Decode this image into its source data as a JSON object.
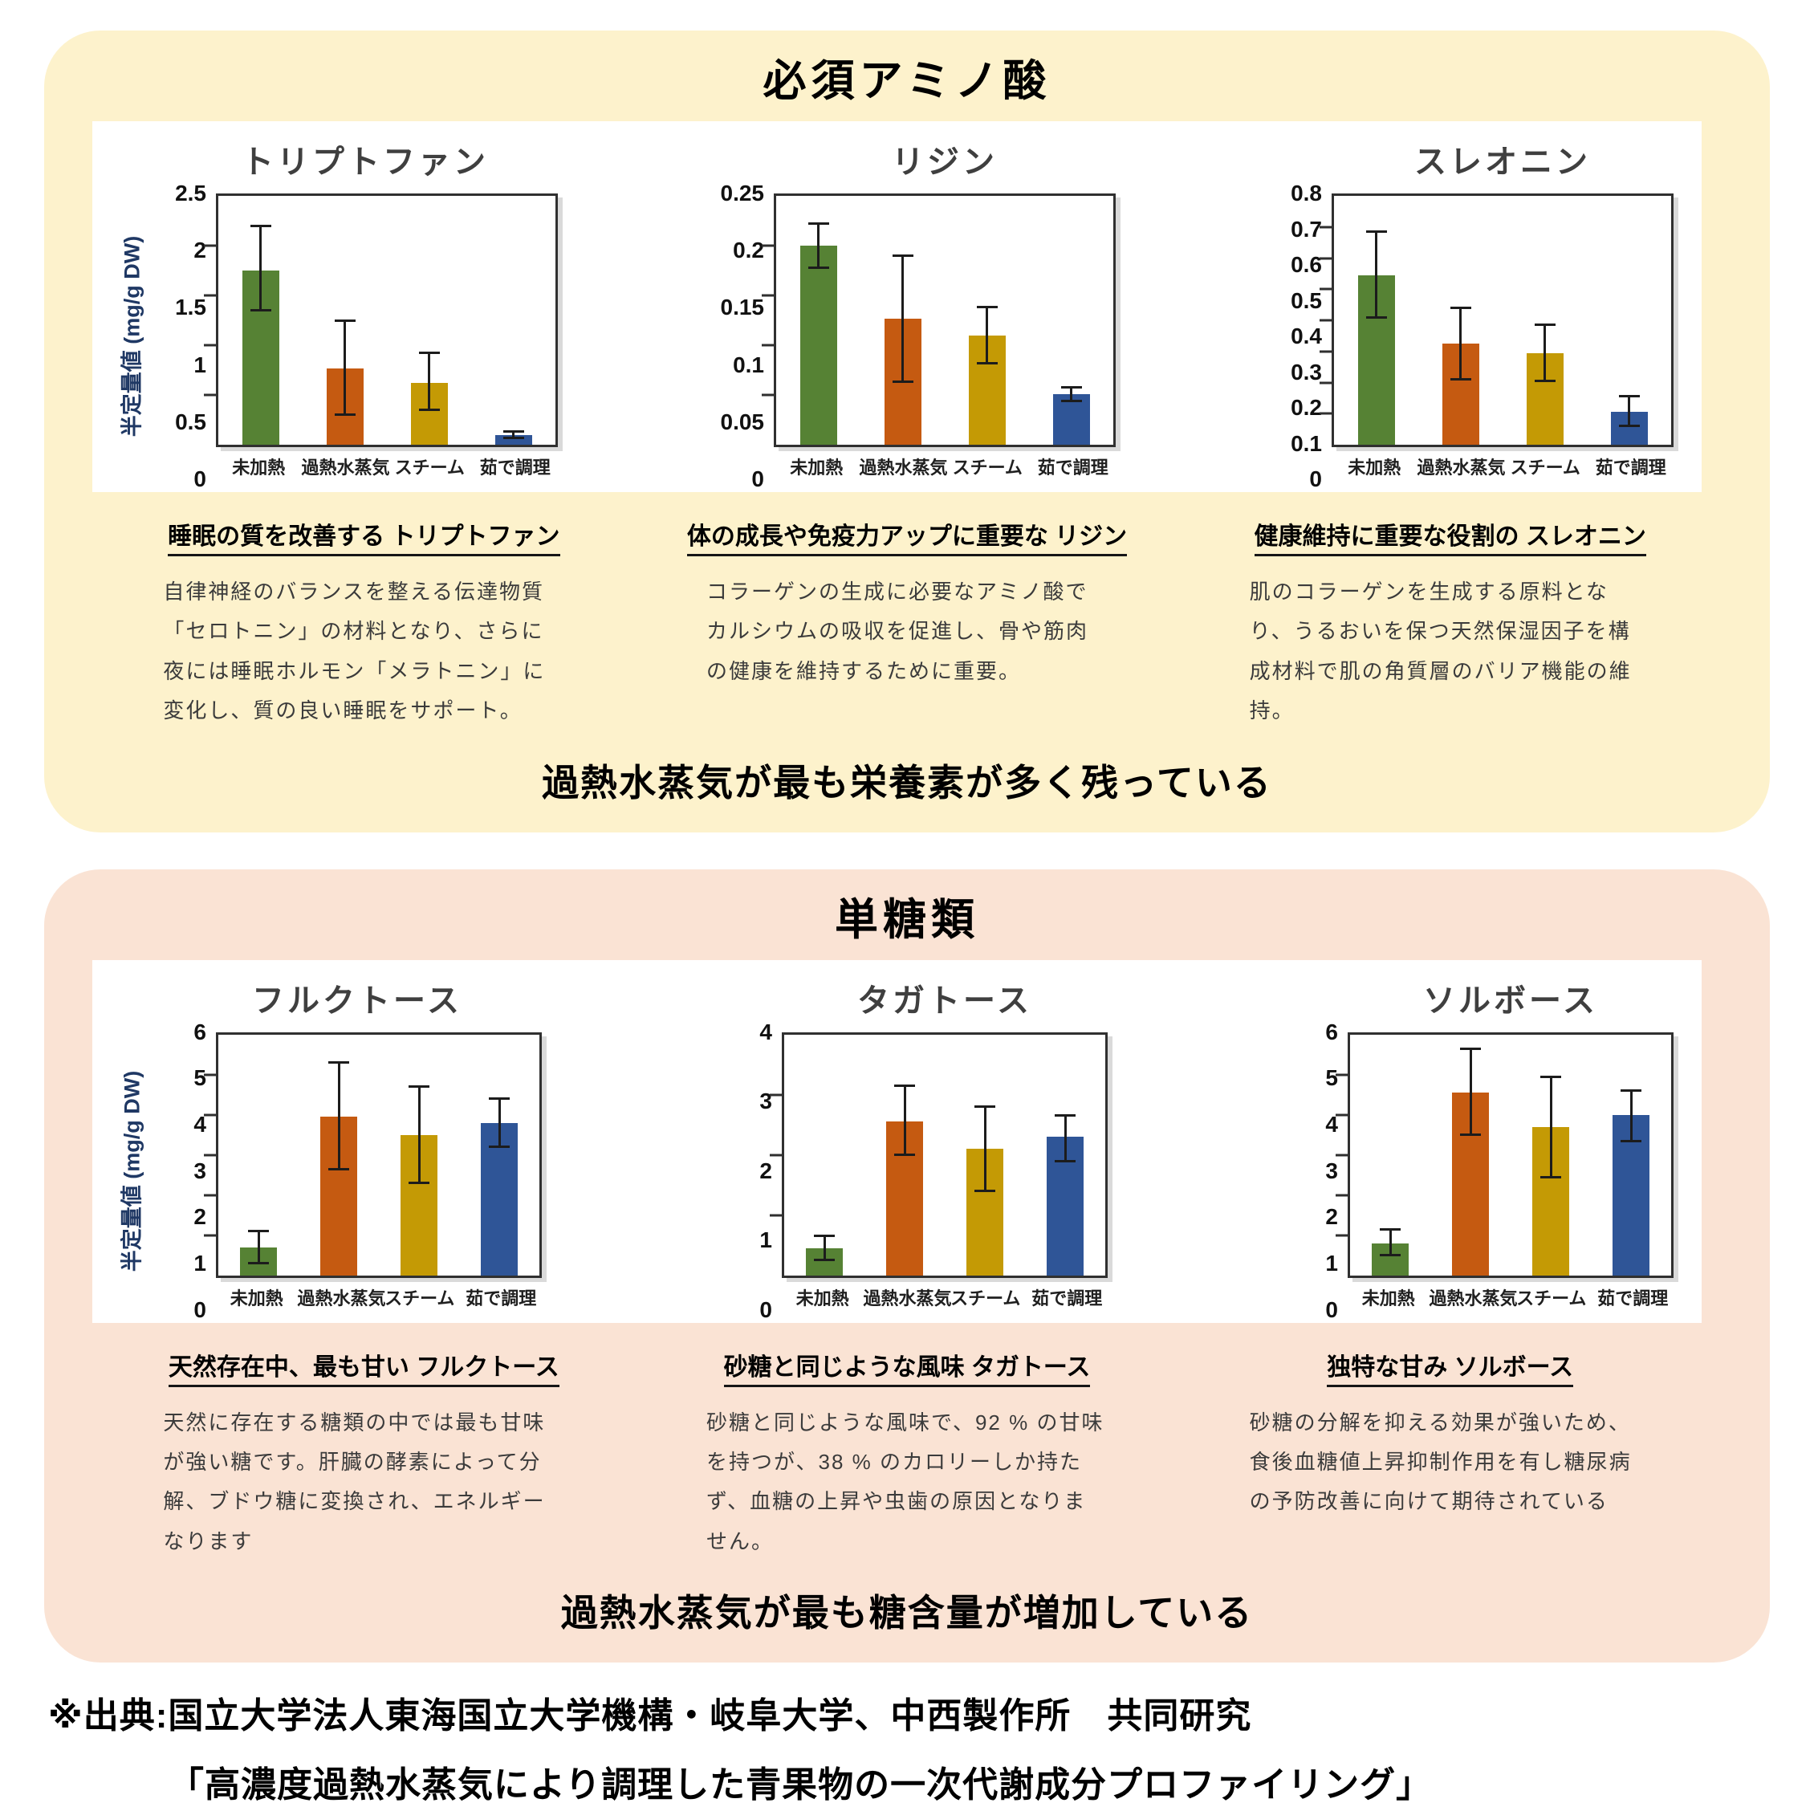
{
  "colors": {
    "panel_amino_bg": "#FDF2CC",
    "panel_sugar_bg": "#FAE3D4",
    "bars": [
      "#568234",
      "#C55A11",
      "#C49A05",
      "#2F5597"
    ],
    "axis": "#303030",
    "ylabel_color": "#1F3864"
  },
  "categories": [
    "未加熱",
    "過熱水蒸気",
    "スチーム",
    "茹で調理"
  ],
  "amino_panel": {
    "title": "必須アミノ酸",
    "conclusion": "過熱水蒸気が最も栄養素が多く残っている",
    "descs": [
      {
        "heading": "睡眠の質を改善する トリプトファン",
        "body": "自律神経のバランスを整える伝達物質「セロトニン」の材料となり、さらに夜には睡眠ホルモン「メラトニン」に変化し、質の良い睡眠をサポート。"
      },
      {
        "heading": "体の成長や免疫力アップに重要な リジン",
        "body": "コラーゲンの生成に必要なアミノ酸でカルシウムの吸収を促進し、骨や筋肉の健康を維持するために重要。"
      },
      {
        "heading": "健康維持に重要な役割の スレオニン",
        "body": "肌のコラーゲンを生成する原料となり、うるおいを保つ天然保湿因子を構成材料で肌の角質層のバリア機能の維持。"
      }
    ]
  },
  "sugar_panel": {
    "title": "単糖類",
    "conclusion": "過熱水蒸気が最も糖含量が増加している",
    "descs": [
      {
        "heading": "天然存在中、最も甘い フルクトース",
        "body": "天然に存在する糖類の中では最も甘味が強い糖です。肝臓の酵素によって分解、ブドウ糖に変換され、エネルギーなります"
      },
      {
        "heading": "砂糖と同じような風味 タガトース",
        "body": "砂糖と同じような風味で、92 % の甘味を持つが、38 % のカロリーしか持たず、血糖の上昇や虫歯の原因となりません。"
      },
      {
        "heading": "独特な甘み ソルボース",
        "body": "砂糖の分解を抑える効果が強いため、食後血糖値上昇抑制作用を有し糖尿病の予防改善に向けて期待されている"
      }
    ]
  },
  "source": {
    "line1": "※出典:国立大学法人東海国立大学機構・岐阜大学、中西製作所　共同研究",
    "line2": "「高濃度過熱水蒸気により調理した青果物の一次代謝成分プロファイリング」"
  },
  "chart_data": [
    {
      "type": "bar",
      "title": "トリプトファン",
      "ylabel": "半定量値 (mg/g DW)",
      "ylim": [
        0,
        2.5
      ],
      "ytick_step": 0.5,
      "grid": false,
      "legend": "none",
      "categories": [
        "未加熱",
        "過熱水蒸気",
        "スチーム",
        "茹で調理"
      ],
      "values": [
        1.75,
        0.77,
        0.62,
        0.1
      ],
      "err_lo": [
        1.35,
        0.3,
        0.35,
        0.07
      ],
      "err_hi": [
        2.2,
        1.25,
        0.92,
        0.13
      ]
    },
    {
      "type": "bar",
      "title": "リジン",
      "ylabel": "",
      "ylim": [
        0,
        0.25
      ],
      "ytick_step": 0.05,
      "grid": false,
      "legend": "none",
      "categories": [
        "未加熱",
        "過熱水蒸気",
        "スチーム",
        "茹で調理"
      ],
      "values": [
        0.2,
        0.127,
        0.11,
        0.051
      ],
      "err_lo": [
        0.178,
        0.063,
        0.082,
        0.044
      ],
      "err_hi": [
        0.222,
        0.19,
        0.138,
        0.058
      ]
    },
    {
      "type": "bar",
      "title": "スレオニン",
      "ylabel": "",
      "ylim": [
        0,
        0.8
      ],
      "ytick_step": 0.1,
      "grid": false,
      "legend": "none",
      "categories": [
        "未加熱",
        "過熱水蒸気",
        "スチーム",
        "茹で調理"
      ],
      "values": [
        0.545,
        0.325,
        0.295,
        0.105
      ],
      "err_lo": [
        0.41,
        0.21,
        0.205,
        0.06
      ],
      "err_hi": [
        0.685,
        0.44,
        0.385,
        0.155
      ]
    },
    {
      "type": "bar",
      "title": "フルクトース",
      "ylabel": "半定量値 (mg/g DW)",
      "ylim": [
        0,
        6
      ],
      "ytick_step": 1,
      "grid": false,
      "legend": "none",
      "categories": [
        "未加熱",
        "過熱水蒸気",
        "スチーム",
        "茹で調理"
      ],
      "values": [
        0.7,
        3.95,
        3.5,
        3.8
      ],
      "err_lo": [
        0.3,
        2.65,
        2.3,
        3.2
      ],
      "err_hi": [
        1.1,
        5.3,
        4.7,
        4.4
      ]
    },
    {
      "type": "bar",
      "title": "タガトース",
      "ylabel": "",
      "ylim": [
        0,
        4
      ],
      "ytick_step": 1,
      "grid": false,
      "legend": "none",
      "categories": [
        "未加熱",
        "過熱水蒸気",
        "スチーム",
        "茹で調理"
      ],
      "values": [
        0.45,
        2.55,
        2.1,
        2.3
      ],
      "err_lo": [
        0.25,
        2.0,
        1.4,
        1.9
      ],
      "err_hi": [
        0.65,
        3.15,
        2.8,
        2.65
      ]
    },
    {
      "type": "bar",
      "title": "ソルボース",
      "ylabel": "",
      "ylim": [
        0,
        6
      ],
      "ytick_step": 1,
      "grid": false,
      "legend": "none",
      "categories": [
        "未加熱",
        "過熱水蒸気",
        "スチーム",
        "茹で調理"
      ],
      "values": [
        0.8,
        4.55,
        3.7,
        4.0
      ],
      "err_lo": [
        0.5,
        3.5,
        2.45,
        3.35
      ],
      "err_hi": [
        1.15,
        5.65,
        4.95,
        4.6
      ]
    }
  ]
}
